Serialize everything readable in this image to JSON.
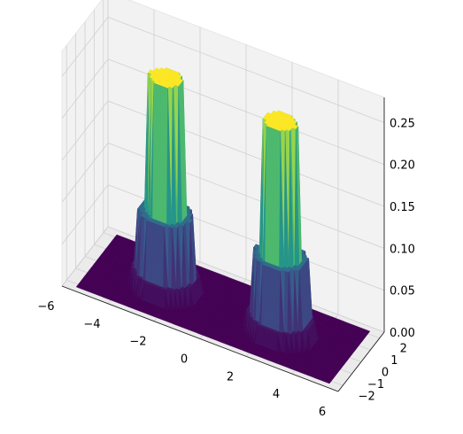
{
  "chart_data": {
    "type": "surface3d",
    "title": "",
    "xlabel": "",
    "ylabel": "",
    "zlabel": "",
    "colormap": "viridis",
    "colormap_stops": [
      "#440154",
      "#3b528b",
      "#21918c",
      "#5ec962",
      "#fde725"
    ],
    "grid": true,
    "xlim": [
      -6,
      6
    ],
    "ylim": [
      -2.5,
      2.5
    ],
    "zlim": [
      0,
      0.28
    ],
    "x_ticks": [
      "−6",
      "−4",
      "−2",
      "0",
      "2",
      "4",
      "6"
    ],
    "y_ticks": [
      "−2",
      "−1",
      "0",
      "1",
      "2"
    ],
    "z_ticks": [
      "0.00",
      "0.05",
      "0.10",
      "0.15",
      "0.20",
      "0.25"
    ],
    "x_tick_values": [
      -6,
      -4,
      -2,
      0,
      2,
      4,
      6
    ],
    "y_tick_values": [
      -2,
      -1,
      0,
      1,
      2
    ],
    "z_tick_values": [
      0,
      0.05,
      0.1,
      0.15,
      0.2,
      0.25
    ],
    "surface": {
      "base_level": 0.0,
      "peaks": [
        {
          "center_x": -2.5,
          "center_y": 0,
          "outer_radius": 1.4,
          "outer_height": 0.02,
          "mid_radius": 1.15,
          "mid_height": 0.09,
          "core_radius": 0.75,
          "core_height": 0.25
        },
        {
          "center_x": 2.5,
          "center_y": 0,
          "outer_radius": 1.4,
          "outer_height": 0.02,
          "mid_radius": 1.15,
          "mid_height": 0.09,
          "core_radius": 0.75,
          "core_height": 0.25
        }
      ]
    }
  }
}
